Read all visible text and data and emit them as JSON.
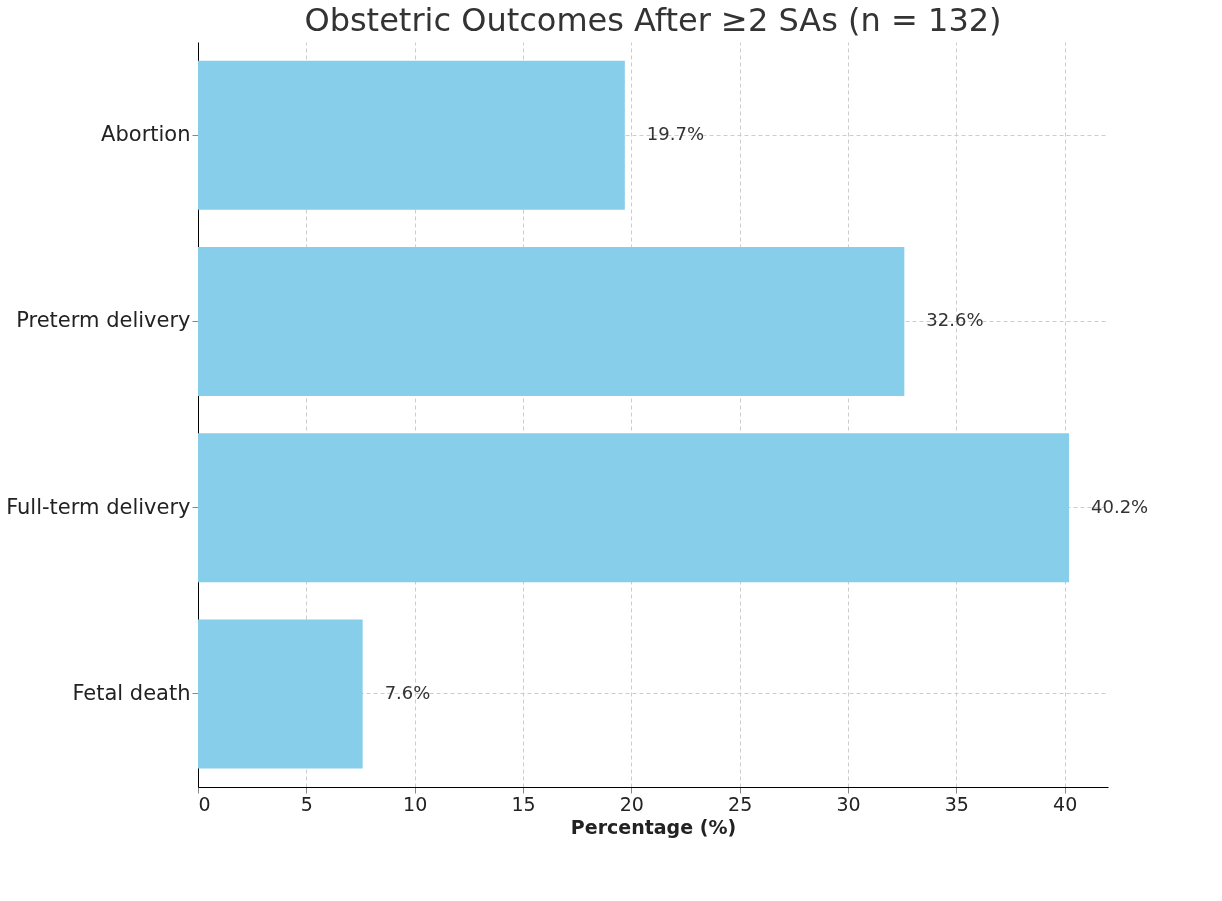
{
  "chart_data": {
    "type": "bar",
    "orientation": "horizontal",
    "title": "Obstetric Outcomes After ≥2 SAs (n = 132)",
    "xlabel": "Percentage (%)",
    "categories": [
      "Abortion",
      "Preterm delivery",
      "Full-term delivery",
      "Fetal death"
    ],
    "values": [
      19.7,
      32.6,
      40.2,
      7.6
    ],
    "value_labels": [
      "19.7%",
      "32.6%",
      "40.2%",
      "7.6%"
    ],
    "color": "#87ceeb",
    "xlim": [
      0,
      42
    ],
    "xticks": [
      0,
      5,
      10,
      15,
      20,
      25,
      30,
      35,
      40
    ],
    "grid": true,
    "line_style": "dashed"
  }
}
